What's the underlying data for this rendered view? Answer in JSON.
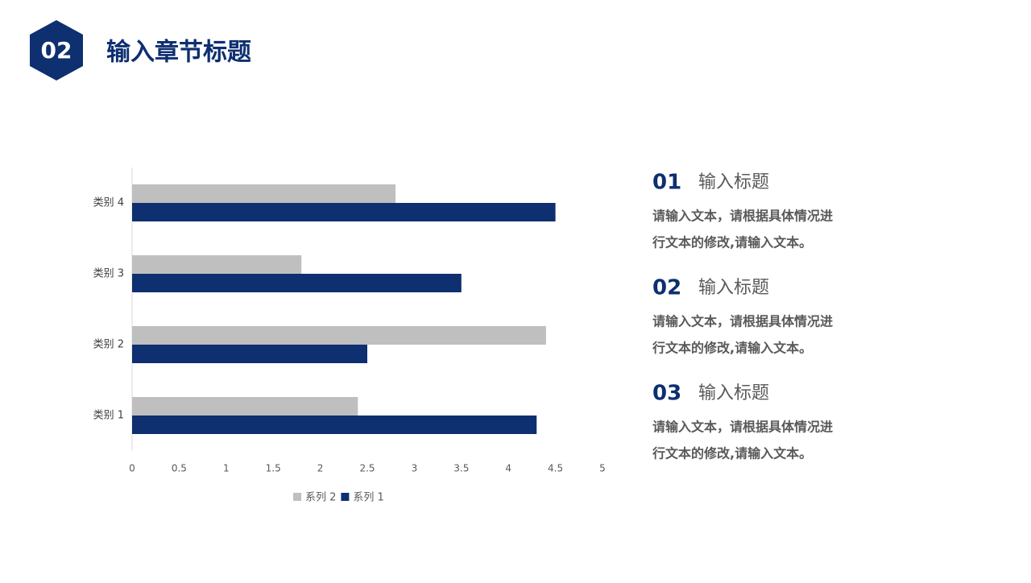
{
  "header": {
    "number": "02",
    "title": "输入章节标题"
  },
  "chart_data": {
    "type": "bar",
    "orientation": "horizontal",
    "categories": [
      "类别 1",
      "类别 2",
      "类别 3",
      "类别 4"
    ],
    "series": [
      {
        "name": "系列 2",
        "color": "#bfbfbf",
        "values": [
          2.4,
          4.4,
          1.8,
          2.8
        ]
      },
      {
        "name": "系列 1",
        "color": "#0e2f70",
        "values": [
          4.3,
          2.5,
          3.5,
          4.5
        ]
      }
    ],
    "xlim": [
      0,
      5
    ],
    "xticks": [
      0,
      0.5,
      1,
      1.5,
      2,
      2.5,
      3,
      3.5,
      4,
      4.5,
      5
    ],
    "legend": "bottom"
  },
  "items": [
    {
      "number": "01",
      "title": "输入标题",
      "lines": [
        "请输入文本，请根据具体情况进",
        "行文本的修改,请输入文本。"
      ]
    },
    {
      "number": "02",
      "title": "输入标题",
      "lines": [
        "请输入文本，请根据具体情况进",
        "行文本的修改,请输入文本。"
      ]
    },
    {
      "number": "03",
      "title": "输入标题",
      "lines": [
        "请输入文本，请根据具体情况进",
        "行文本的修改,请输入文本。"
      ]
    }
  ]
}
